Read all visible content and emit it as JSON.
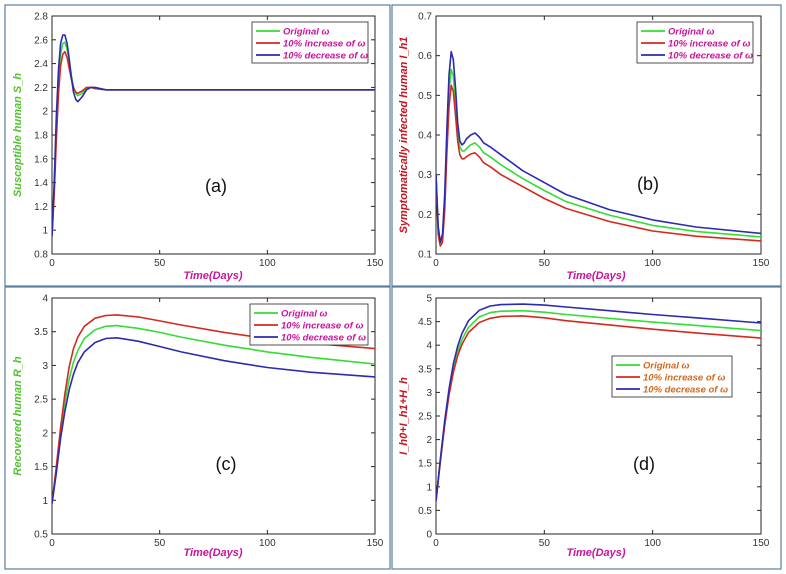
{
  "colors": {
    "original": "#33dd33",
    "increase": "#d42a1e",
    "decrease": "#2b2bb0",
    "frame": "#5a7f9e",
    "axis_title_x": "#c8149b",
    "axis_title_y_a": "#55c232",
    "axis_title_y_b": "#c8141e",
    "axis_title_y_c": "#55c232",
    "axis_title_y_d": "#c8141e",
    "legend_text": "#c8149b",
    "legend_text_d": "#d2691e"
  },
  "chart_data": [
    {
      "type": "line",
      "panel_label": "(a)",
      "xlabel": "Time(Days)",
      "ylabel": "Susceptible human S_h",
      "xlim": [
        0,
        150
      ],
      "ylim": [
        0.8,
        2.8
      ],
      "xticks": [
        0,
        50,
        100,
        150
      ],
      "yticks": [
        0.8,
        1.0,
        1.2,
        1.4,
        1.6,
        1.8,
        2.0,
        2.2,
        2.4,
        2.6,
        2.8
      ],
      "ytick_labels": [
        "0.8",
        "1",
        "1.2",
        "1.4",
        "1.6",
        "1.8",
        "2",
        "2.2",
        "2.4",
        "2.6",
        "2.8"
      ],
      "legend": {
        "position": "top-right",
        "entries": [
          "Original ω",
          "10% increase of ω",
          "10% decrease of ω"
        ]
      },
      "series": [
        {
          "name": "Original ω",
          "x": [
            0,
            1,
            2,
            3,
            4,
            5,
            6,
            7,
            8,
            9,
            10,
            11,
            12,
            14,
            16,
            18,
            20,
            25,
            30,
            40,
            60,
            80,
            100,
            150
          ],
          "y": [
            0.95,
            1.35,
            1.85,
            2.25,
            2.48,
            2.57,
            2.58,
            2.52,
            2.42,
            2.3,
            2.2,
            2.15,
            2.13,
            2.15,
            2.19,
            2.2,
            2.19,
            2.18,
            2.18,
            2.18,
            2.18,
            2.18,
            2.18,
            2.18
          ]
        },
        {
          "name": "10% increase of ω",
          "x": [
            0,
            1,
            2,
            3,
            4,
            5,
            6,
            7,
            8,
            9,
            10,
            11,
            12,
            14,
            16,
            18,
            20,
            25,
            30,
            40,
            60,
            80,
            100,
            150
          ],
          "y": [
            0.95,
            1.3,
            1.75,
            2.15,
            2.38,
            2.48,
            2.5,
            2.45,
            2.36,
            2.27,
            2.2,
            2.16,
            2.15,
            2.17,
            2.2,
            2.2,
            2.19,
            2.18,
            2.18,
            2.18,
            2.18,
            2.18,
            2.18,
            2.18
          ]
        },
        {
          "name": "10% decrease of ω",
          "x": [
            0,
            1,
            2,
            3,
            4,
            5,
            6,
            7,
            8,
            9,
            10,
            11,
            12,
            14,
            16,
            18,
            20,
            25,
            30,
            40,
            60,
            80,
            100,
            150
          ],
          "y": [
            0.95,
            1.4,
            1.95,
            2.35,
            2.57,
            2.64,
            2.64,
            2.57,
            2.44,
            2.28,
            2.16,
            2.1,
            2.08,
            2.12,
            2.18,
            2.2,
            2.2,
            2.18,
            2.18,
            2.18,
            2.18,
            2.18,
            2.18,
            2.18
          ]
        }
      ]
    },
    {
      "type": "line",
      "panel_label": "(b)",
      "xlabel": "Time(Days)",
      "ylabel": "Symptomatically infected human I_h1",
      "xlim": [
        0,
        150
      ],
      "ylim": [
        0.1,
        0.7
      ],
      "xticks": [
        0,
        50,
        100,
        150
      ],
      "yticks": [
        0.1,
        0.2,
        0.3,
        0.4,
        0.5,
        0.6,
        0.7
      ],
      "ytick_labels": [
        "0.1",
        "0.2",
        "0.3",
        "0.4",
        "0.5",
        "0.6",
        "0.7"
      ],
      "legend": {
        "position": "top-right",
        "entries": [
          "Original ω",
          "10% increase of ω",
          "10% decrease of ω"
        ]
      },
      "series": [
        {
          "name": "Original ω",
          "x": [
            0,
            1,
            2,
            3,
            4,
            5,
            6,
            7,
            8,
            9,
            10,
            11,
            12,
            13,
            14,
            16,
            18,
            20,
            22,
            25,
            30,
            40,
            50,
            60,
            80,
            100,
            120,
            150
          ],
          "y": [
            0.3,
            0.16,
            0.125,
            0.14,
            0.23,
            0.38,
            0.51,
            0.565,
            0.55,
            0.48,
            0.41,
            0.37,
            0.36,
            0.36,
            0.365,
            0.375,
            0.38,
            0.37,
            0.355,
            0.345,
            0.325,
            0.29,
            0.26,
            0.232,
            0.198,
            0.172,
            0.157,
            0.143
          ]
        },
        {
          "name": "10% increase of ω",
          "x": [
            0,
            1,
            2,
            3,
            4,
            5,
            6,
            7,
            8,
            9,
            10,
            11,
            12,
            13,
            14,
            16,
            18,
            20,
            22,
            25,
            30,
            40,
            50,
            60,
            80,
            100,
            120,
            150
          ],
          "y": [
            0.3,
            0.15,
            0.12,
            0.13,
            0.21,
            0.35,
            0.47,
            0.525,
            0.51,
            0.45,
            0.385,
            0.35,
            0.34,
            0.34,
            0.345,
            0.352,
            0.355,
            0.345,
            0.33,
            0.32,
            0.3,
            0.27,
            0.24,
            0.215,
            0.182,
            0.158,
            0.145,
            0.133
          ]
        },
        {
          "name": "10% decrease of ω",
          "x": [
            0,
            1,
            2,
            3,
            4,
            5,
            6,
            7,
            8,
            9,
            10,
            11,
            12,
            13,
            14,
            16,
            18,
            20,
            22,
            25,
            30,
            40,
            50,
            60,
            80,
            100,
            120,
            150
          ],
          "y": [
            0.3,
            0.17,
            0.13,
            0.15,
            0.25,
            0.41,
            0.55,
            0.61,
            0.59,
            0.52,
            0.43,
            0.385,
            0.375,
            0.38,
            0.39,
            0.4,
            0.405,
            0.395,
            0.38,
            0.37,
            0.35,
            0.31,
            0.28,
            0.25,
            0.212,
            0.186,
            0.168,
            0.152
          ]
        }
      ]
    },
    {
      "type": "line",
      "panel_label": "(c)",
      "xlabel": "Time(Days)",
      "ylabel": "Recovered human R_h",
      "xlim": [
        0,
        150
      ],
      "ylim": [
        0.5,
        4
      ],
      "xticks": [
        0,
        50,
        100,
        150
      ],
      "yticks": [
        0.5,
        1.0,
        1.5,
        2.0,
        2.5,
        3.0,
        3.5,
        4.0
      ],
      "ytick_labels": [
        "0.5",
        "1",
        "1.5",
        "2",
        "2.5",
        "3",
        "3.5",
        "4"
      ],
      "legend": {
        "position": "top-right",
        "entries": [
          "Original ω",
          "10% increase of ω",
          "10% decrease of ω"
        ]
      },
      "series": [
        {
          "name": "Original ω",
          "x": [
            0,
            2,
            4,
            6,
            8,
            10,
            12,
            15,
            20,
            25,
            30,
            40,
            50,
            60,
            80,
            100,
            120,
            150
          ],
          "y": [
            0.95,
            1.45,
            2.0,
            2.45,
            2.8,
            3.05,
            3.22,
            3.4,
            3.53,
            3.58,
            3.59,
            3.55,
            3.49,
            3.42,
            3.3,
            3.2,
            3.12,
            3.02
          ]
        },
        {
          "name": "10% increase of ω",
          "x": [
            0,
            2,
            4,
            6,
            8,
            10,
            12,
            15,
            20,
            25,
            30,
            40,
            50,
            60,
            80,
            100,
            120,
            150
          ],
          "y": [
            0.95,
            1.5,
            2.08,
            2.58,
            2.98,
            3.25,
            3.42,
            3.58,
            3.7,
            3.74,
            3.75,
            3.72,
            3.66,
            3.6,
            3.49,
            3.4,
            3.33,
            3.25
          ]
        },
        {
          "name": "10% decrease of ω",
          "x": [
            0,
            2,
            4,
            6,
            8,
            10,
            12,
            15,
            20,
            25,
            30,
            40,
            50,
            60,
            80,
            100,
            120,
            150
          ],
          "y": [
            0.95,
            1.4,
            1.92,
            2.32,
            2.64,
            2.87,
            3.04,
            3.2,
            3.34,
            3.4,
            3.41,
            3.36,
            3.28,
            3.2,
            3.07,
            2.97,
            2.9,
            2.83
          ]
        }
      ]
    },
    {
      "type": "line",
      "panel_label": "(d)",
      "xlabel": "Time(Days)",
      "ylabel": "I_h0+I_h1+H_h",
      "xlim": [
        0,
        150
      ],
      "ylim": [
        0,
        5
      ],
      "xticks": [
        0,
        50,
        100,
        150
      ],
      "yticks": [
        0,
        0.5,
        1.0,
        1.5,
        2.0,
        2.5,
        3.0,
        3.5,
        4.0,
        4.5,
        5.0
      ],
      "ytick_labels": [
        "0",
        "0.5",
        "1",
        "1.5",
        "2",
        "2.5",
        "3",
        "3.5",
        "4",
        "4.5",
        "5"
      ],
      "legend": {
        "position": "center-right",
        "entries": [
          "Original ω",
          "10% increase of ω",
          "10% decrease of ω"
        ]
      },
      "series": [
        {
          "name": "Original ω",
          "x": [
            0,
            2,
            4,
            6,
            8,
            10,
            12,
            15,
            20,
            25,
            30,
            40,
            50,
            60,
            80,
            100,
            120,
            150
          ],
          "y": [
            0.7,
            1.55,
            2.35,
            3.0,
            3.5,
            3.87,
            4.12,
            4.38,
            4.6,
            4.69,
            4.72,
            4.73,
            4.7,
            4.65,
            4.57,
            4.49,
            4.42,
            4.31
          ]
        },
        {
          "name": "10% increase of ω",
          "x": [
            0,
            2,
            4,
            6,
            8,
            10,
            12,
            15,
            20,
            25,
            30,
            40,
            50,
            60,
            80,
            100,
            120,
            150
          ],
          "y": [
            0.7,
            1.52,
            2.3,
            2.94,
            3.42,
            3.78,
            4.02,
            4.27,
            4.48,
            4.57,
            4.61,
            4.62,
            4.58,
            4.52,
            4.43,
            4.34,
            4.26,
            4.15
          ]
        },
        {
          "name": "10% decrease of ω",
          "x": [
            0,
            2,
            4,
            6,
            8,
            10,
            12,
            15,
            20,
            25,
            30,
            40,
            50,
            60,
            80,
            100,
            120,
            150
          ],
          "y": [
            0.7,
            1.58,
            2.4,
            3.07,
            3.6,
            3.98,
            4.25,
            4.52,
            4.74,
            4.83,
            4.86,
            4.87,
            4.85,
            4.81,
            4.73,
            4.65,
            4.58,
            4.47
          ]
        }
      ]
    }
  ]
}
